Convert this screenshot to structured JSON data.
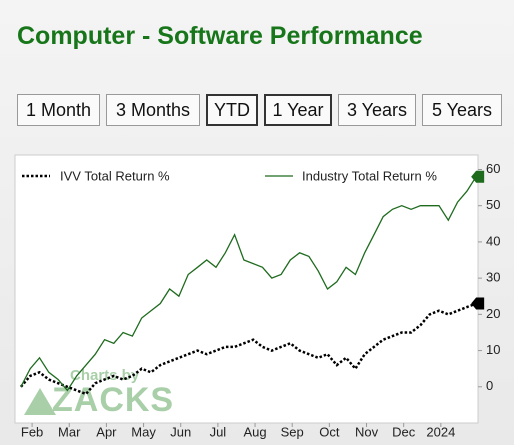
{
  "chart_data": {
    "type": "line",
    "title": "Computer - Software Performance",
    "range_buttons": [
      "1 Month",
      "3 Months",
      "YTD",
      "1 Year",
      "3 Years",
      "5 Years"
    ],
    "watermark": [
      "Charts by",
      "ZACKS"
    ],
    "x": [
      -0.3,
      -0.05,
      0.2,
      0.45,
      0.7,
      0.95,
      1.2,
      1.45,
      1.7,
      1.95,
      2.2,
      2.45,
      2.7,
      2.95,
      3.2,
      3.45,
      3.7,
      3.95,
      4.2,
      4.45,
      4.7,
      4.95,
      5.2,
      5.45,
      5.7,
      5.95,
      6.2,
      6.45,
      6.7,
      6.95,
      7.2,
      7.45,
      7.7,
      7.95,
      8.2,
      8.45,
      8.7,
      8.95,
      9.2,
      9.45,
      9.7,
      9.95,
      10.2,
      10.45,
      10.7,
      10.95,
      11.2,
      11.45,
      11.7,
      11.95
    ],
    "xlim": [
      -0.46,
      12.0
    ],
    "xticks": [
      {
        "value": 0,
        "label": "Feb"
      },
      {
        "value": 1,
        "label": "Mar"
      },
      {
        "value": 2,
        "label": "Apr"
      },
      {
        "value": 3,
        "label": "May"
      },
      {
        "value": 4,
        "label": "Jun"
      },
      {
        "value": 5,
        "label": "Jul"
      },
      {
        "value": 6,
        "label": "Aug"
      },
      {
        "value": 7,
        "label": "Sep"
      },
      {
        "value": 8,
        "label": "Oct"
      },
      {
        "value": 9,
        "label": "Nov"
      },
      {
        "value": 10,
        "label": "Dec"
      },
      {
        "value": 11,
        "label": "2024"
      }
    ],
    "ylim": [
      -10,
      64
    ],
    "yticks": [
      0,
      10,
      20,
      30,
      40,
      50,
      60
    ],
    "grid": false,
    "series": [
      {
        "name": "IVV Total Return %",
        "color": "#000000",
        "dash": true,
        "values": [
          0,
          3,
          4,
          2,
          1,
          0,
          -1,
          -2,
          1,
          2,
          3,
          2,
          3,
          5,
          4,
          6,
          7,
          8,
          9,
          10,
          9,
          10,
          11,
          11,
          12,
          13,
          11,
          10,
          11,
          12,
          10,
          9,
          8,
          9,
          6,
          8,
          5,
          9,
          11,
          13,
          14,
          15,
          15,
          17,
          20,
          21,
          20,
          21,
          22,
          23
        ]
      },
      {
        "name": "Industry Total Return %",
        "color": "#1e6b1e",
        "dash": false,
        "values": [
          0,
          5,
          8,
          4,
          2,
          -1,
          3,
          6,
          9,
          13,
          12,
          15,
          14,
          19,
          21,
          23,
          27,
          25,
          31,
          33,
          35,
          33,
          37,
          42,
          35,
          34,
          33,
          30,
          31,
          35,
          37,
          36,
          32,
          27,
          29,
          33,
          31,
          37,
          42,
          47,
          49,
          50,
          49,
          50,
          50,
          50,
          46,
          51,
          54,
          58
        ]
      }
    ]
  }
}
